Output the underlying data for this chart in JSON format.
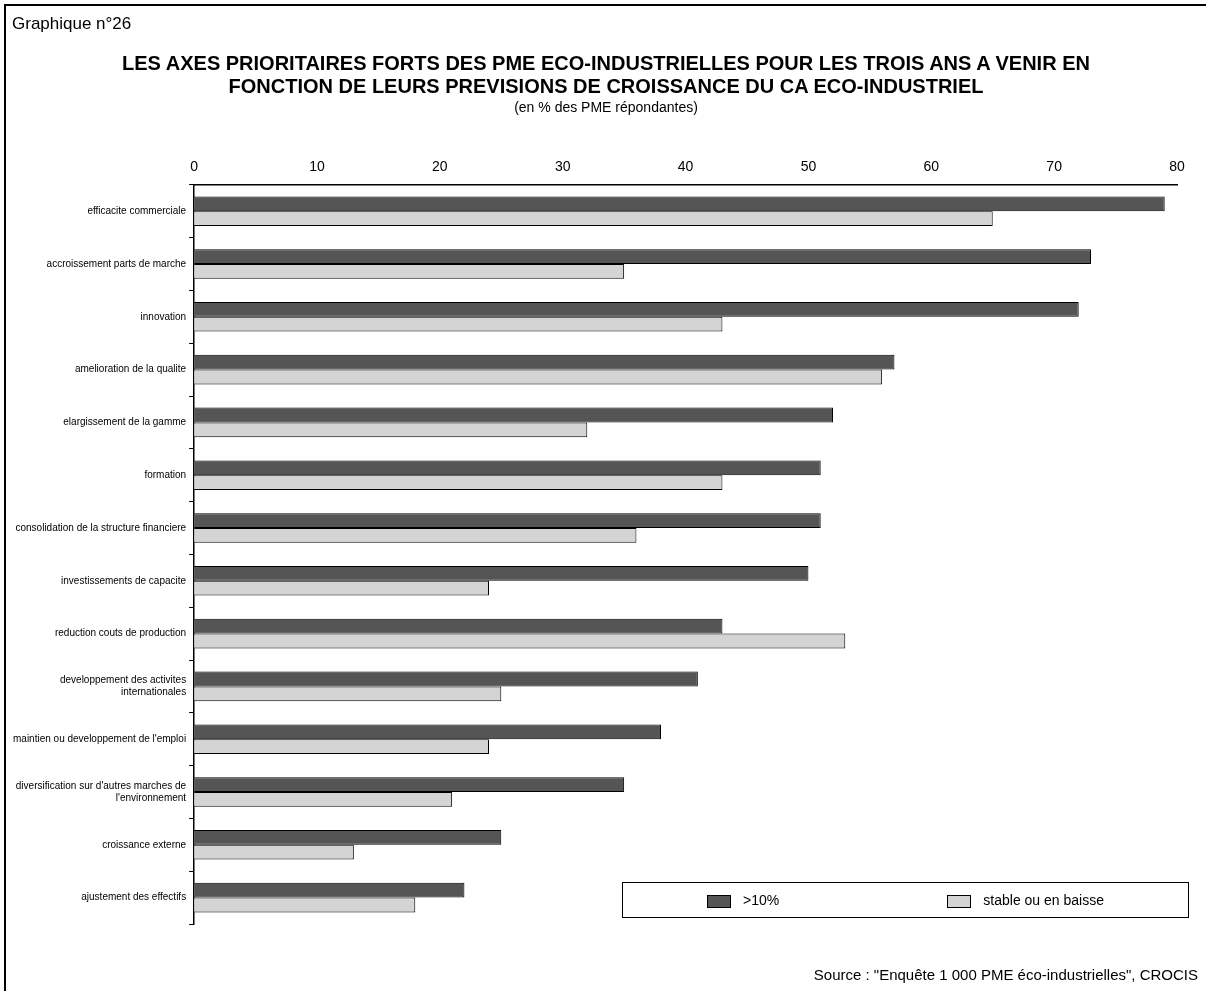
{
  "chart_data": {
    "type": "bar",
    "orientation": "horizontal",
    "title": "LES AXES PRIORITAIRES FORTS DES PME ECO-INDUSTRIELLES POUR LES TROIS ANS A VENIR EN FONCTION DE LEURS PREVISIONS DE CROISSANCE DU CA ECO-INDUSTRIEL",
    "subtitle": "(en % des PME répondantes)",
    "categories": [
      "efficacite commerciale",
      "accroissement parts de marche",
      "innovation",
      "amelioration de la qualite",
      "elargissement de la gamme",
      "formation",
      "consolidation de la structure financiere",
      "investissements de capacite",
      "reduction couts de production",
      "developpement des activites internationales",
      "maintien ou developpement de l'emploi",
      "diversification sur d'autres marches de l'environnement",
      "croissance externe",
      "ajustement des effectifs"
    ],
    "series": [
      {
        "name": ">10%",
        "color": "#555555",
        "values": [
          79,
          73,
          72,
          57,
          52,
          51,
          51,
          50,
          43,
          41,
          38,
          35,
          25,
          22
        ]
      },
      {
        "name": "stable ou en baisse",
        "color": "#d4d4d4",
        "values": [
          65,
          35,
          43,
          56,
          32,
          43,
          36,
          24,
          53,
          25,
          24,
          21,
          13,
          18
        ]
      }
    ],
    "xlim": [
      0,
      80
    ],
    "xticks": [
      0,
      10,
      20,
      30,
      40,
      50,
      60,
      70,
      80
    ],
    "grid": false,
    "legend": "bottom right",
    "annotations": [
      "Graphique n°26",
      "Source : \"Enquête 1 000 PME éco-industrielles\", CROCIS"
    ]
  }
}
